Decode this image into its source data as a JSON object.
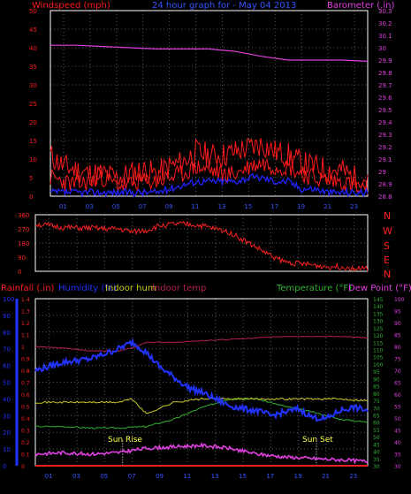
{
  "colors": {
    "background": "#000000",
    "grid": "#5a5a5a",
    "frame": "#ffffff",
    "windspeed": "#ff1a1a",
    "wind_avg": "#2222ff",
    "barometer": "#e040e0",
    "wind_dir": "#ff2020",
    "rainfall": "#ff2020",
    "humidity": "#2233ff",
    "indoor_hum": "#c8c820",
    "indoor_temp": "#b02050",
    "temperature": "#30b030",
    "dew_point": "#e040e0",
    "title": "#3355ff",
    "sun": "#ffff40"
  },
  "chart_data": [
    {
      "type": "line",
      "title": "24 hour graph for - May 04 2013",
      "ylabel_left": "Windspeed (mph)",
      "ylabel_right": "Barometer (.in)",
      "grid": true,
      "x_ticks": [
        "01",
        "03",
        "05",
        "07",
        "09",
        "11",
        "13",
        "15",
        "17",
        "19",
        "21",
        "23"
      ],
      "y_left_ticks": [
        "0",
        "5",
        "10",
        "15",
        "20",
        "25",
        "30",
        "35",
        "40",
        "45",
        "50"
      ],
      "y_right_ticks": [
        "28.8",
        "28.9",
        "29",
        "29.1",
        "29.2",
        "29.3",
        "29.4",
        "29.5",
        "29.6",
        "29.7",
        "29.8",
        "29.9",
        "30",
        "30.1",
        "30.2",
        "30.3"
      ],
      "ylim_left": [
        0,
        50
      ],
      "ylim_right": [
        28.8,
        30.3
      ],
      "series": [
        {
          "name": "Windspeed (mph)",
          "axis": "left",
          "x": [
            0,
            1,
            2,
            3,
            4,
            5,
            6,
            7,
            8,
            9,
            10,
            11,
            12,
            13,
            14,
            15,
            16,
            17,
            18,
            19,
            20,
            21,
            22,
            23,
            24
          ],
          "values": [
            5,
            4,
            3,
            4,
            5,
            3,
            3,
            4,
            4,
            5,
            6,
            8,
            7,
            6,
            6,
            8,
            9,
            8,
            8,
            6,
            5,
            4,
            4,
            3,
            2
          ]
        },
        {
          "name": "Wind gust (mph)",
          "axis": "left",
          "x": [
            0,
            1,
            2,
            3,
            4,
            5,
            6,
            7,
            8,
            9,
            10,
            11,
            12,
            13,
            14,
            15,
            16,
            17,
            18,
            19,
            20,
            21,
            22,
            23,
            24
          ],
          "values": [
            11,
            8,
            7,
            6,
            6,
            5,
            6,
            7,
            6,
            8,
            9,
            12,
            11,
            11,
            12,
            13,
            14,
            12,
            11,
            9,
            8,
            7,
            7,
            5,
            3
          ]
        },
        {
          "name": "Average windspeed",
          "axis": "left",
          "x": [
            0,
            1,
            2,
            3,
            4,
            5,
            6,
            7,
            8,
            9,
            10,
            11,
            12,
            13,
            14,
            15,
            16,
            17,
            18,
            19,
            20,
            21,
            22,
            23,
            24
          ],
          "values": [
            1,
            1,
            1,
            1,
            1,
            1,
            1,
            1,
            1,
            2,
            3,
            4,
            4,
            4,
            4,
            5,
            5,
            4,
            4,
            2,
            2,
            1,
            1,
            1,
            1
          ]
        },
        {
          "name": "Barometer (.in)",
          "axis": "right",
          "x": [
            0,
            2,
            4,
            6,
            8,
            10,
            12,
            14,
            16,
            18,
            20,
            22,
            24
          ],
          "values": [
            30.02,
            30.02,
            30.01,
            30.0,
            29.99,
            29.99,
            29.99,
            29.97,
            29.93,
            29.9,
            29.9,
            29.9,
            29.89
          ]
        }
      ]
    },
    {
      "type": "line",
      "ylabel_right": [
        "N",
        "W",
        "S",
        "E",
        "N"
      ],
      "y_left_ticks": [
        "0",
        "90",
        "180",
        "270",
        "360"
      ],
      "ylim": [
        0,
        360
      ],
      "series": [
        {
          "name": "Wind direction",
          "x": [
            0,
            1,
            2,
            3,
            4,
            5,
            6,
            7,
            8,
            9,
            10,
            11,
            12,
            13,
            14,
            15,
            16,
            17,
            18,
            19,
            20,
            21,
            22,
            23,
            24
          ],
          "values": [
            300,
            290,
            280,
            275,
            275,
            270,
            270,
            250,
            260,
            290,
            300,
            300,
            290,
            270,
            250,
            200,
            150,
            100,
            60,
            50,
            40,
            30,
            30,
            20,
            15
          ]
        }
      ]
    },
    {
      "type": "line",
      "legend": [
        "Rainfall (.in)",
        "Humidity (%)",
        "Indoor hum",
        "Indoor temp",
        "Temperature (°F)",
        "Dew Point (°F)"
      ],
      "y_rain_ticks": [
        "0",
        "0.1",
        "0.2",
        "0.3",
        "0.4",
        "0.5",
        "0.6",
        "0.7",
        "0.8",
        "0.9",
        "1",
        "1.1",
        "1.2",
        "1.3",
        "1.4"
      ],
      "y_hum_ticks": [
        "0",
        "10",
        "20",
        "30",
        "40",
        "50",
        "60",
        "70",
        "80",
        "90",
        "100"
      ],
      "y_temp_ticks": [
        "30",
        "35",
        "40",
        "45",
        "50",
        "55",
        "60",
        "65",
        "70",
        "75",
        "80",
        "85",
        "90",
        "95",
        "100",
        "105",
        "110",
        "115",
        "120",
        "125",
        "130",
        "135",
        "140",
        "145"
      ],
      "y_dew_ticks": [
        "30",
        "35",
        "40",
        "45",
        "50",
        "55",
        "60",
        "65",
        "70",
        "75",
        "80",
        "85",
        "90",
        "95",
        "100"
      ],
      "ylim_rain": [
        0,
        1.4
      ],
      "ylim_hum": [
        0,
        100
      ],
      "ylim_temp": [
        30,
        145
      ],
      "annotations": [
        "Sun Rise",
        "Sun Set"
      ],
      "series": [
        {
          "name": "Humidity (%)",
          "axis": "hum",
          "x": [
            0,
            2,
            4,
            6,
            7,
            8,
            9,
            10,
            11,
            12,
            13,
            14,
            15,
            16,
            17,
            18,
            19,
            20,
            21,
            22,
            23,
            24
          ],
          "values": [
            57,
            62,
            64,
            70,
            74,
            68,
            59,
            53,
            47,
            44,
            40,
            36,
            34,
            33,
            30,
            32,
            34,
            29,
            28,
            33,
            35,
            33
          ]
        },
        {
          "name": "Indoor hum",
          "axis": "hum",
          "x": [
            0,
            2,
            4,
            6,
            7,
            8,
            10,
            12,
            14,
            16,
            18,
            20,
            22,
            24
          ],
          "values": [
            38,
            38,
            38,
            38,
            40,
            31,
            38,
            40,
            40,
            40,
            40,
            40,
            40,
            39
          ]
        },
        {
          "name": "Indoor temp",
          "axis": "temp",
          "x": [
            0,
            2,
            4,
            6,
            7,
            8,
            10,
            12,
            14,
            16,
            18,
            20,
            22,
            24
          ],
          "values": [
            112,
            111,
            109,
            109,
            111,
            115,
            115,
            116,
            117,
            118,
            119,
            119,
            119,
            118
          ]
        },
        {
          "name": "Temperature (°F)",
          "axis": "temp",
          "x": [
            0,
            2,
            4,
            6,
            8,
            10,
            12,
            14,
            16,
            18,
            20,
            22,
            24
          ],
          "values": [
            57,
            57,
            56,
            56,
            57,
            62,
            70,
            76,
            76,
            71,
            67,
            62,
            60
          ]
        },
        {
          "name": "Dew Point (°F)",
          "axis": "temp",
          "x": [
            0,
            2,
            4,
            6,
            8,
            10,
            12,
            14,
            16,
            18,
            20,
            22,
            24
          ],
          "values": [
            38,
            39,
            38,
            39,
            42,
            43,
            44,
            42,
            38,
            36,
            35,
            34,
            33
          ]
        },
        {
          "name": "Rainfall (.in)",
          "axis": "rain",
          "x": [
            0,
            24
          ],
          "values": [
            0,
            0
          ]
        }
      ]
    }
  ]
}
